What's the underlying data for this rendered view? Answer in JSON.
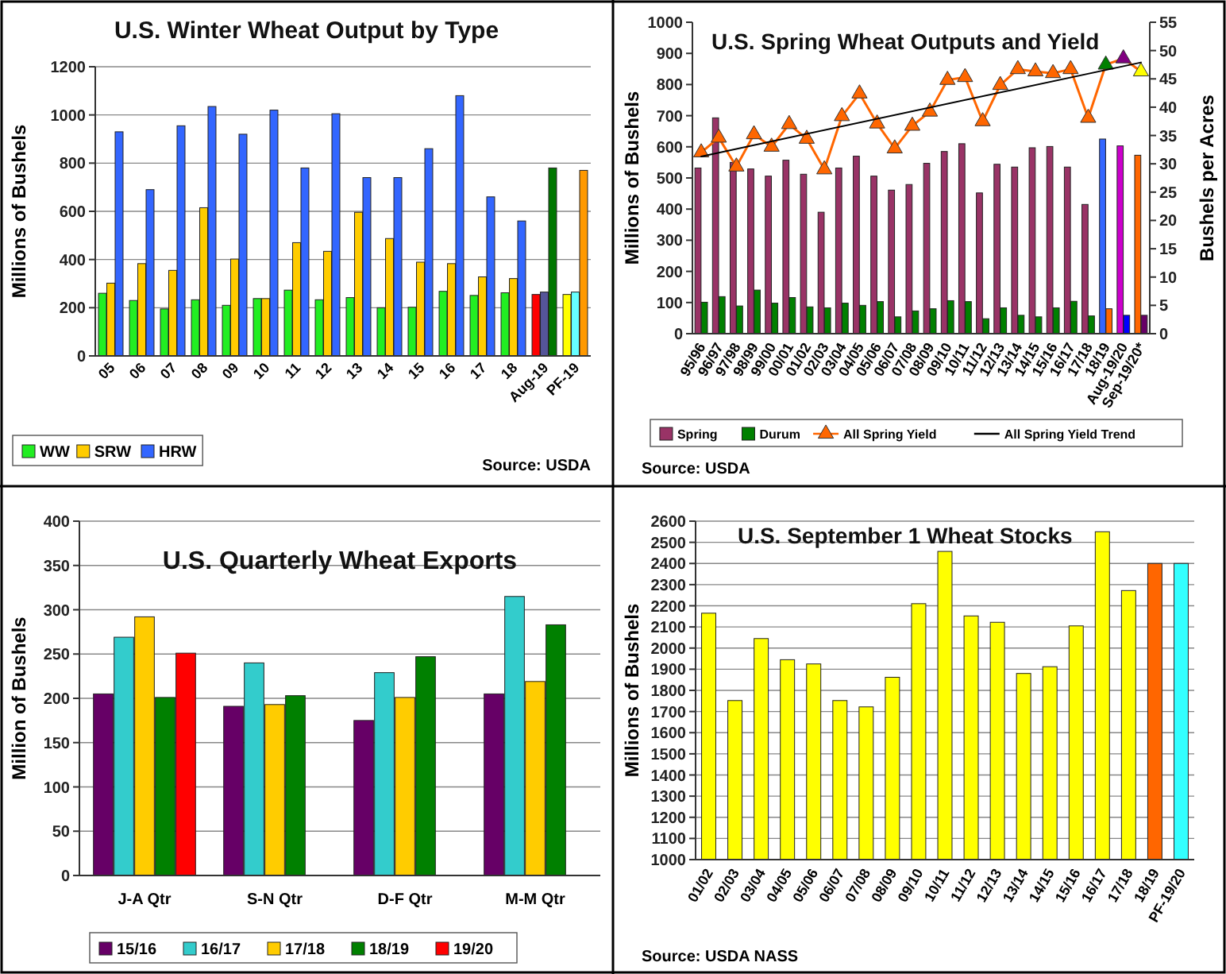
{
  "chart_data": [
    {
      "type": "bar",
      "title": "U.S. Winter Wheat Output by Type",
      "ylabel": "Millions of Bushels",
      "categories": [
        "05",
        "06",
        "07",
        "08",
        "09",
        "10",
        "11",
        "12",
        "13",
        "14",
        "15",
        "16",
        "17",
        "18",
        "Aug-19",
        "PF-19"
      ],
      "series": [
        {
          "name": "WW",
          "color": "#22ee22",
          "colors": [
            "#22ee22",
            "#22ee22",
            "#22ee22",
            "#22ee22",
            "#22ee22",
            "#22ee22",
            "#22ee22",
            "#22ee22",
            "#22ee22",
            "#22ee22",
            "#22ee22",
            "#22ee22",
            "#22ee22",
            "#22ee22",
            "#ff0000",
            "#ffff00"
          ],
          "values": [
            260,
            230,
            195,
            233,
            210,
            238,
            273,
            233,
            242,
            200,
            202,
            268,
            251,
            262,
            255,
            255
          ]
        },
        {
          "name": "SRW",
          "color": "#ffcc00",
          "colors": [
            "#ffcc00",
            "#ffcc00",
            "#ffcc00",
            "#ffcc00",
            "#ffcc00",
            "#ffcc00",
            "#ffcc00",
            "#ffcc00",
            "#ffcc00",
            "#ffcc00",
            "#ffcc00",
            "#ffcc00",
            "#ffcc00",
            "#ffcc00",
            "#555599",
            "#66ffff"
          ],
          "values": [
            302,
            383,
            355,
            615,
            402,
            238,
            470,
            434,
            596,
            487,
            389,
            383,
            328,
            321,
            265,
            265
          ]
        },
        {
          "name": "HRW",
          "color": "#3366ff",
          "colors": [
            "#3366ff",
            "#3366ff",
            "#3366ff",
            "#3366ff",
            "#3366ff",
            "#3366ff",
            "#3366ff",
            "#3366ff",
            "#3366ff",
            "#3366ff",
            "#3366ff",
            "#3366ff",
            "#3366ff",
            "#3366ff",
            "#007700",
            "#ff9900"
          ],
          "values": [
            930,
            690,
            955,
            1035,
            920,
            1020,
            780,
            1005,
            740,
            740,
            860,
            1080,
            660,
            560,
            780,
            770
          ]
        }
      ],
      "ylim": [
        0,
        1200
      ],
      "yticks": [
        0,
        200,
        400,
        600,
        800,
        1000,
        1200
      ],
      "grid": "y",
      "legend": "bottom left",
      "annotations": [
        "Source: USDA"
      ]
    },
    {
      "type": "bar",
      "title": "U.S. Spring Wheat Outputs and Yield",
      "ylabel": "Millions of Bushels",
      "y2label": "Bushels per Acres",
      "categories": [
        "95/96",
        "96/97",
        "97/98",
        "98/99",
        "99/00",
        "00/01",
        "01/02",
        "02/03",
        "03/04",
        "04/05",
        "05/06",
        "06/07",
        "07/08",
        "08/09",
        "09/10",
        "10/11",
        "11/12",
        "12/13",
        "13/14",
        "14/15",
        "15/16",
        "16/17",
        "17/18",
        "18/19",
        "Aug-19/20",
        "Sep-19/20*"
      ],
      "series": [
        {
          "name": "Spring",
          "color": "#993366",
          "colors": [
            "#993366",
            "#993366",
            "#993366",
            "#993366",
            "#993366",
            "#993366",
            "#993366",
            "#993366",
            "#993366",
            "#993366",
            "#993366",
            "#993366",
            "#993366",
            "#993366",
            "#993366",
            "#993366",
            "#993366",
            "#993366",
            "#993366",
            "#993366",
            "#993366",
            "#993366",
            "#993366",
            "#3366ff",
            "#cc00cc",
            "#ff6600"
          ],
          "values": [
            532,
            693,
            550,
            529,
            506,
            557,
            512,
            390,
            532,
            570,
            506,
            461,
            479,
            547,
            585,
            610,
            452,
            544,
            535,
            597,
            601,
            535,
            415,
            625,
            603,
            573
          ]
        },
        {
          "name": "Durum",
          "color": "#008000",
          "colors": [
            "#008000",
            "#008000",
            "#008000",
            "#008000",
            "#008000",
            "#008000",
            "#008000",
            "#008000",
            "#008000",
            "#008000",
            "#008000",
            "#008000",
            "#008000",
            "#008000",
            "#008000",
            "#008000",
            "#008000",
            "#008000",
            "#008000",
            "#008000",
            "#008000",
            "#008000",
            "#008000",
            "#ff6600",
            "#0000ff",
            "#660066"
          ],
          "values": [
            101,
            119,
            89,
            140,
            98,
            116,
            86,
            83,
            98,
            91,
            103,
            54,
            73,
            80,
            106,
            103,
            48,
            83,
            59,
            54,
            83,
            104,
            57,
            80,
            59,
            59
          ]
        },
        {
          "name": "All Spring Yield",
          "type": "line",
          "axis": "y2",
          "marker": "triangle",
          "color": "#ff6600",
          "colors": [
            "#ff6600",
            "#ff6600",
            "#ff6600",
            "#ff6600",
            "#ff6600",
            "#ff6600",
            "#ff6600",
            "#ff6600",
            "#ff6600",
            "#ff6600",
            "#ff6600",
            "#ff6600",
            "#ff6600",
            "#ff6600",
            "#ff6600",
            "#ff6600",
            "#ff6600",
            "#ff6600",
            "#ff6600",
            "#ff6600",
            "#ff6600",
            "#ff6600",
            "#ff6600",
            "#008000",
            "#800080",
            "#ffff00"
          ],
          "values": [
            32.0,
            34.6,
            29.5,
            35.2,
            33.0,
            37.0,
            34.4,
            29.0,
            38.4,
            42.4,
            37.1,
            32.7,
            36.7,
            39.2,
            44.8,
            45.3,
            37.5,
            43.9,
            46.7,
            46.3,
            46.0,
            46.7,
            38.1,
            47.5,
            48.6,
            46.3
          ]
        },
        {
          "name": "All Spring Yield Trend",
          "type": "line",
          "axis": "y2",
          "marker": "none",
          "color": "#000000",
          "x": [
            "95/96",
            "Sep-19/20*"
          ],
          "values": [
            31.3,
            47.9
          ]
        }
      ],
      "ylim": [
        0,
        1000
      ],
      "yticks": [
        0,
        100,
        200,
        300,
        400,
        500,
        600,
        700,
        800,
        900,
        1000
      ],
      "y2lim": [
        0,
        55
      ],
      "y2ticks": [
        0,
        5,
        10,
        15,
        20,
        25,
        30,
        35,
        40,
        45,
        50,
        55
      ],
      "legend": "bottom",
      "annotations": [
        "Source: USDA"
      ]
    },
    {
      "type": "bar",
      "title": "U.S. Quarterly Wheat Exports",
      "ylabel": "Million of Bushels",
      "categories": [
        "J-A Qtr",
        "S-N Qtr",
        "D-F Qtr",
        "M-M Qtr"
      ],
      "series": [
        {
          "name": "15/16",
          "color": "#660066",
          "values": [
            205,
            191,
            175,
            205
          ]
        },
        {
          "name": "16/17",
          "color": "#33cccc",
          "values": [
            269,
            240,
            229,
            315
          ]
        },
        {
          "name": "17/18",
          "color": "#ffcc00",
          "values": [
            292,
            193,
            201,
            219
          ]
        },
        {
          "name": "18/19",
          "color": "#008000",
          "values": [
            201,
            203,
            247,
            283
          ]
        },
        {
          "name": "19/20",
          "color": "#ff0000",
          "values": [
            251,
            null,
            null,
            null
          ]
        }
      ],
      "ylim": [
        0,
        400
      ],
      "yticks": [
        0,
        50,
        100,
        150,
        200,
        250,
        300,
        350,
        400
      ],
      "grid": "y",
      "legend": "bottom"
    },
    {
      "type": "bar",
      "title": "U.S. September 1 Wheat Stocks",
      "ylabel": "Millions of Bushels",
      "categories": [
        "01/02",
        "02/03",
        "03/04",
        "04/05",
        "05/06",
        "06/07",
        "07/08",
        "08/09",
        "09/10",
        "10/11",
        "11/12",
        "12/13",
        "13/14",
        "14/15",
        "15/16",
        "16/17",
        "17/18",
        "18/19",
        "PF-19/20"
      ],
      "values": [
        2165,
        1752,
        2045,
        1945,
        1925,
        1752,
        1722,
        1862,
        2210,
        2457,
        2152,
        2122,
        1880,
        1912,
        2105,
        2550,
        2272,
        2400,
        2400
      ],
      "colors": [
        "#ffff00",
        "#ffff00",
        "#ffff00",
        "#ffff00",
        "#ffff00",
        "#ffff00",
        "#ffff00",
        "#ffff00",
        "#ffff00",
        "#ffff00",
        "#ffff00",
        "#ffff00",
        "#ffff00",
        "#ffff00",
        "#ffff00",
        "#ffff00",
        "#ffff00",
        "#ff6600",
        "#33ffff"
      ],
      "ylim": [
        1000,
        2600
      ],
      "yticks": [
        1000,
        1100,
        1200,
        1300,
        1400,
        1500,
        1600,
        1700,
        1800,
        1900,
        2000,
        2100,
        2200,
        2300,
        2400,
        2500,
        2600
      ],
      "grid": "y",
      "annotations": [
        "Source: USDA NASS"
      ]
    }
  ]
}
